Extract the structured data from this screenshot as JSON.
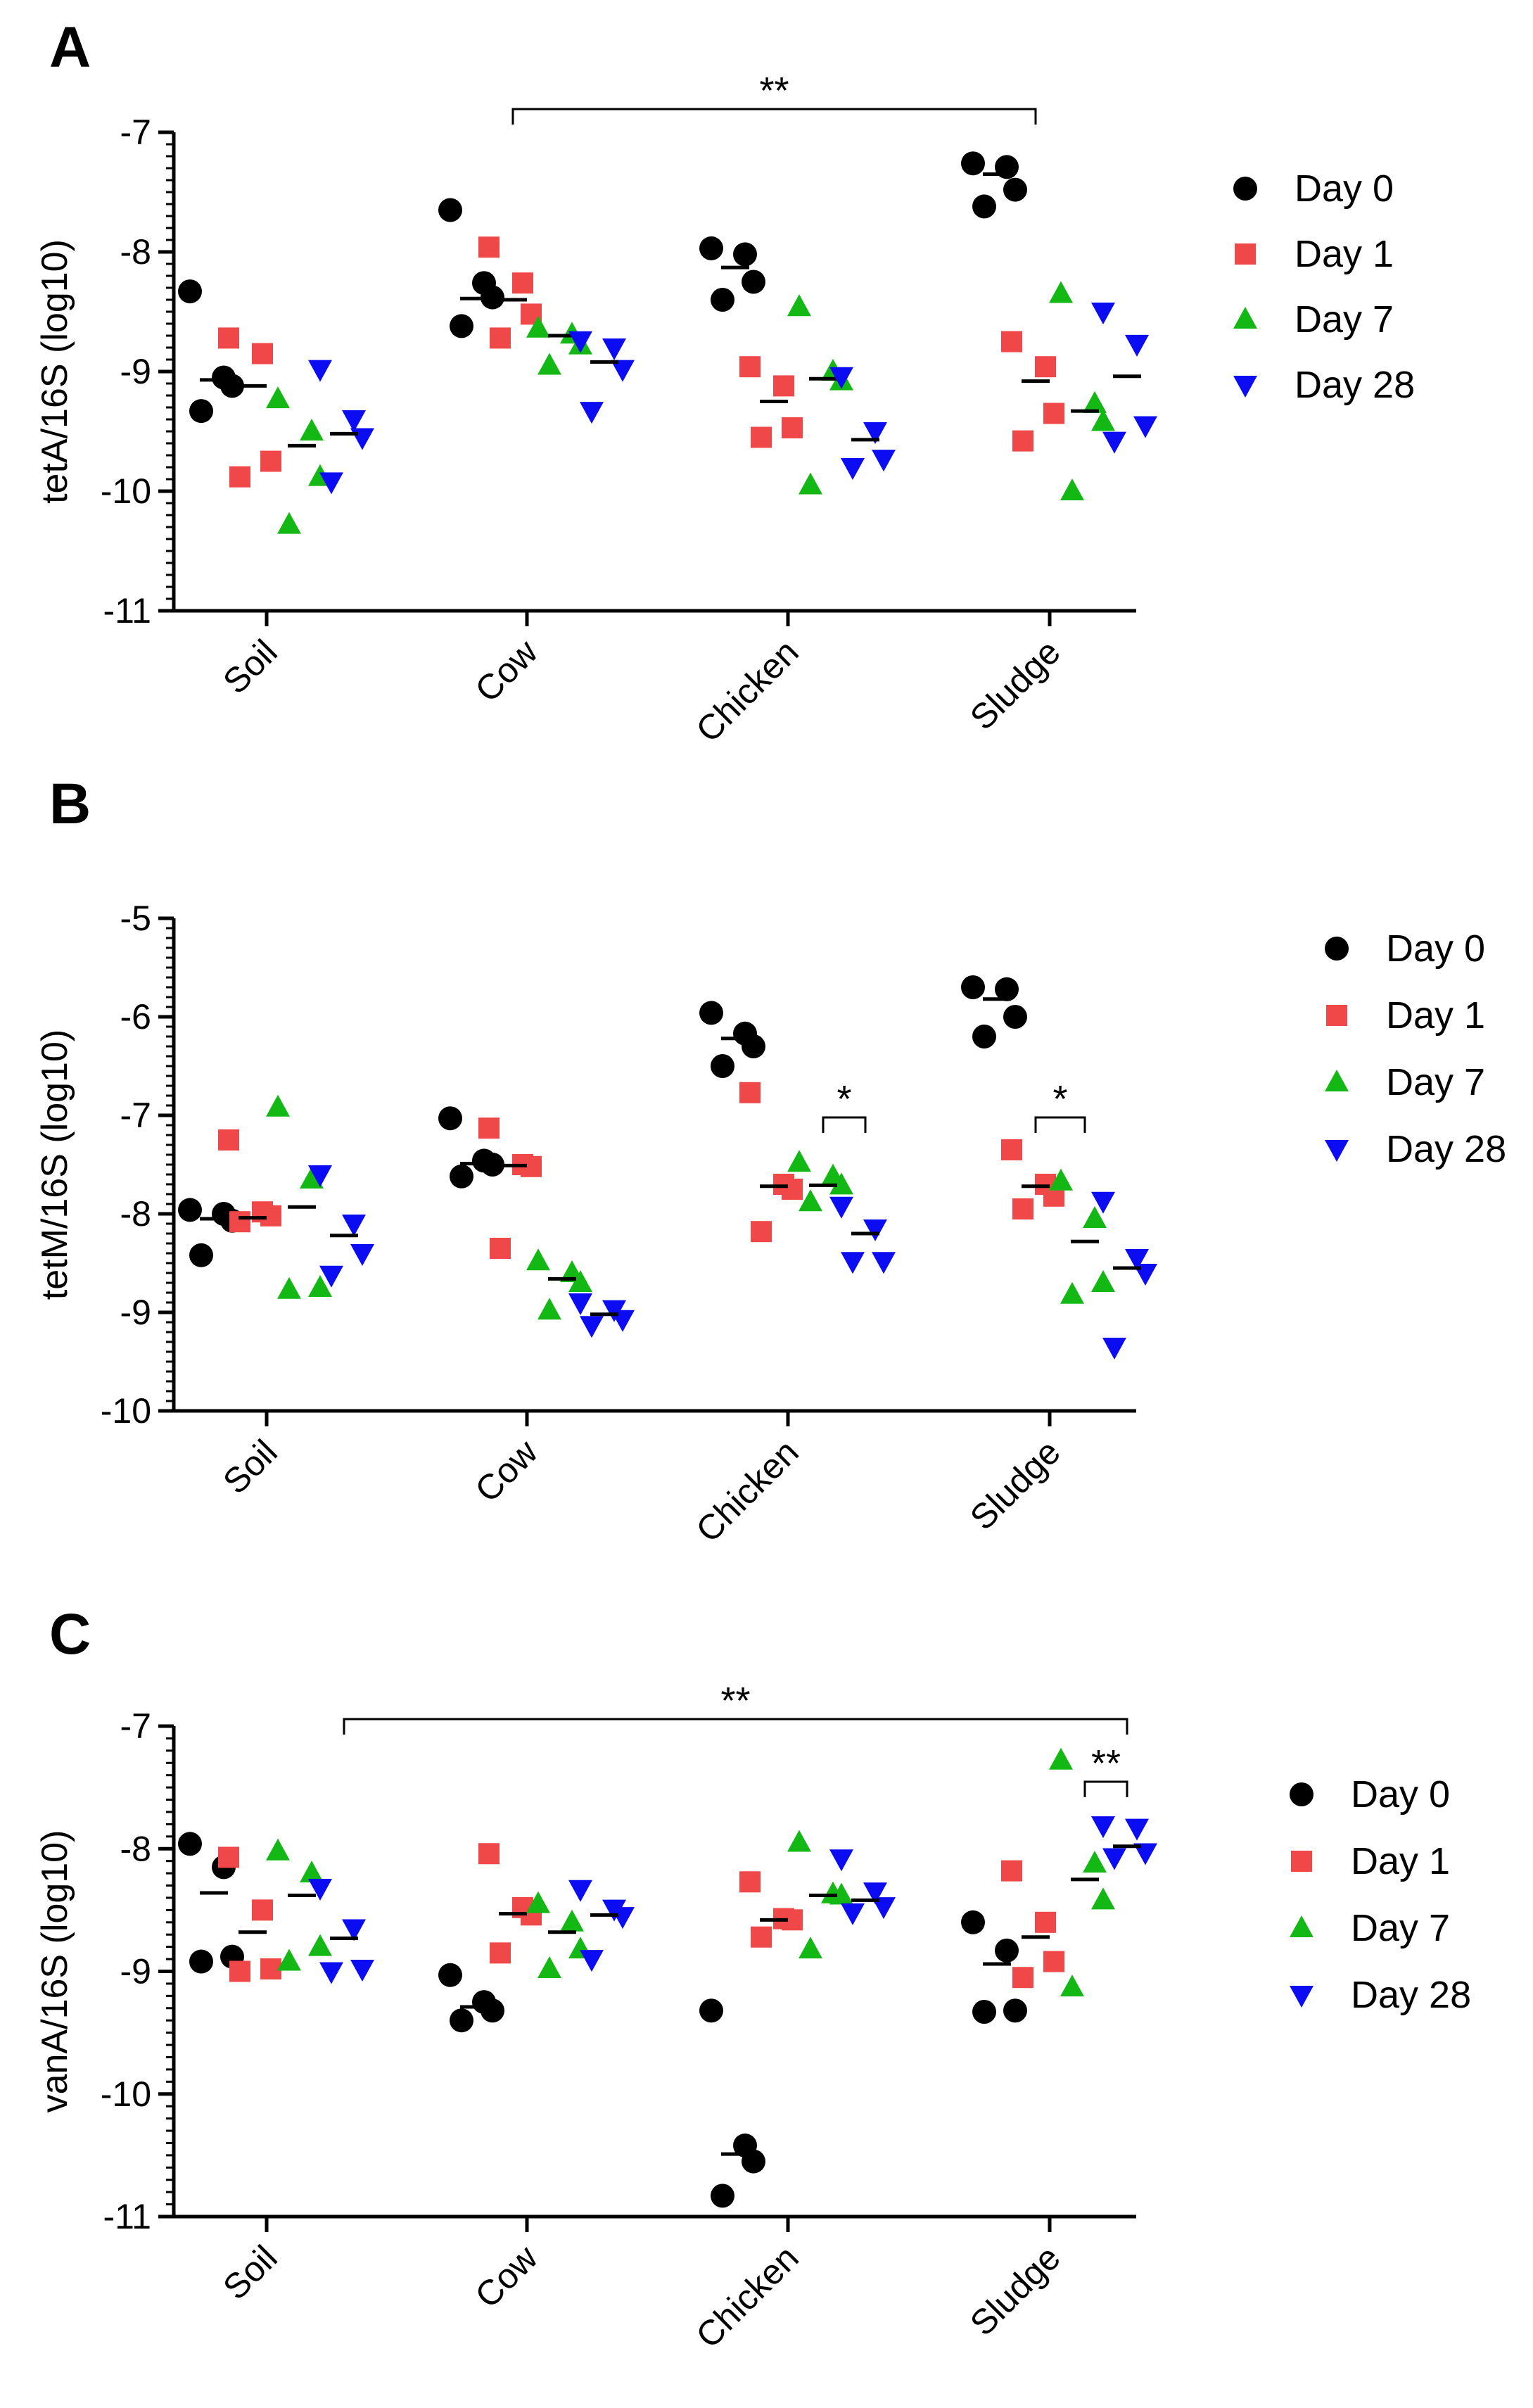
{
  "figure": {
    "series_styles": [
      {
        "name": "Day 0",
        "color": "#000000",
        "marker": "circle"
      },
      {
        "name": "Day 1",
        "color": "#f04848",
        "marker": "square"
      },
      {
        "name": "Day 7",
        "color": "#14b814",
        "marker": "triangle-up"
      },
      {
        "name": "Day 28",
        "color": "#0c0cf2",
        "marker": "triangle-down"
      }
    ]
  },
  "chart_data": [
    {
      "type": "scatter",
      "panel_label": "A",
      "ylabel": "tetA/16S (log10)",
      "ylim": [
        -11,
        -7
      ],
      "yticks": [
        -7,
        -8,
        -9,
        -10,
        -11
      ],
      "categories": [
        "Soil",
        "Cow",
        "Chicken",
        "Sludge"
      ],
      "series": [
        {
          "name": "Day 0",
          "values": [
            [
              -8.33,
              -9.05,
              -9.12,
              -9.33
            ],
            [
              -7.65,
              -8.26,
              -8.38,
              -8.62
            ],
            [
              -7.97,
              -8.02,
              -8.25,
              -8.4
            ],
            [
              -7.26,
              -7.29,
              -7.48,
              -7.62
            ]
          ],
          "medians": [
            -9.07,
            -8.39,
            -8.13,
            -7.35
          ]
        },
        {
          "name": "Day 1",
          "values": [
            [
              -8.72,
              -8.85,
              -9.75,
              -9.88
            ],
            [
              -7.96,
              -8.26,
              -8.52,
              -8.72
            ],
            [
              -8.96,
              -9.12,
              -9.47,
              -9.55
            ],
            [
              -8.75,
              -8.96,
              -9.35,
              -9.58
            ]
          ],
          "medians": [
            -9.12,
            -8.4,
            -9.25,
            -9.08
          ]
        },
        {
          "name": "Day 7",
          "values": [
            [
              -9.23,
              -9.5,
              -9.88,
              -10.28
            ],
            [
              -8.64,
              -8.69,
              -8.78,
              -8.95
            ],
            [
              -8.46,
              -9.0,
              -9.08,
              -9.95
            ],
            [
              -8.35,
              -9.27,
              -9.42,
              -10.0
            ]
          ],
          "medians": [
            -9.62,
            -8.7,
            -9.06,
            -9.33
          ]
        },
        {
          "name": "Day 28",
          "values": [
            [
              -8.98,
              -9.4,
              -9.55,
              -9.92
            ],
            [
              -8.74,
              -8.8,
              -8.98,
              -9.33
            ],
            [
              -9.04,
              -9.5,
              -9.73,
              -9.8
            ],
            [
              -8.5,
              -8.77,
              -9.45,
              -9.58
            ]
          ],
          "medians": [
            -9.52,
            -8.92,
            -9.57,
            -9.04
          ]
        }
      ],
      "annotations": [
        {
          "text": "**",
          "from": "Cow Day 1",
          "to": "Sludge Day 1"
        }
      ]
    },
    {
      "type": "scatter",
      "panel_label": "B",
      "ylabel": "tetM/16S (log10)",
      "ylim": [
        -10,
        -5
      ],
      "yticks": [
        -5,
        -6,
        -7,
        -8,
        -9,
        -10
      ],
      "categories": [
        "Soil",
        "Cow",
        "Chicken",
        "Sludge"
      ],
      "series": [
        {
          "name": "Day 0",
          "values": [
            [
              -7.96,
              -8.0,
              -8.07,
              -8.42
            ],
            [
              -7.03,
              -7.46,
              -7.5,
              -7.62
            ],
            [
              -5.96,
              -6.17,
              -6.3,
              -6.5
            ],
            [
              -5.7,
              -5.72,
              -6.0,
              -6.2
            ]
          ],
          "medians": [
            -8.05,
            -7.49,
            -6.22,
            -5.82
          ]
        },
        {
          "name": "Day 1",
          "values": [
            [
              -7.25,
              -7.98,
              -8.02,
              -8.08
            ],
            [
              -7.13,
              -7.5,
              -7.52,
              -8.35
            ],
            [
              -6.77,
              -7.7,
              -7.75,
              -8.18
            ],
            [
              -7.35,
              -7.7,
              -7.82,
              -7.95
            ]
          ],
          "medians": [
            -8.04,
            -7.51,
            -7.72,
            -7.72
          ]
        },
        {
          "name": "Day 7",
          "values": [
            [
              -6.92,
              -7.65,
              -8.75,
              -8.77
            ],
            [
              -8.48,
              -8.6,
              -8.7,
              -8.98
            ],
            [
              -7.48,
              -7.62,
              -7.71,
              -7.88
            ],
            [
              -7.67,
              -8.05,
              -8.7,
              -8.82
            ]
          ],
          "medians": [
            -7.93,
            -8.66,
            -7.71,
            -8.28
          ]
        },
        {
          "name": "Day 28",
          "values": [
            [
              -7.6,
              -8.1,
              -8.4,
              -8.62
            ],
            [
              -8.9,
              -8.97,
              -9.07,
              -9.13
            ],
            [
              -7.92,
              -8.15,
              -8.48,
              -8.48
            ],
            [
              -7.87,
              -8.45,
              -8.6,
              -9.35
            ]
          ],
          "medians": [
            -8.22,
            -9.02,
            -8.2,
            -8.55
          ]
        }
      ],
      "annotations": [
        {
          "text": "*",
          "from": "Chicken Day 7",
          "to": "Chicken Day 28"
        },
        {
          "text": "*",
          "from": "Sludge Day 1",
          "to": "Sludge Day 7"
        }
      ]
    },
    {
      "type": "scatter",
      "panel_label": "C",
      "ylabel": "vanA/16S (log10)",
      "ylim": [
        -11,
        -7
      ],
      "yticks": [
        -7,
        -8,
        -9,
        -10,
        -11
      ],
      "categories": [
        "Soil",
        "Cow",
        "Chicken",
        "Sludge"
      ],
      "series": [
        {
          "name": "Day 0",
          "values": [
            [
              -7.96,
              -8.15,
              -8.88,
              -8.92
            ],
            [
              -9.03,
              -9.25,
              -9.32,
              -9.4
            ],
            [
              -9.32,
              -10.42,
              -10.55,
              -10.83
            ],
            [
              -8.6,
              -8.83,
              -9.32,
              -9.33
            ]
          ],
          "medians": [
            -8.36,
            -9.29,
            -10.49,
            -8.94
          ]
        },
        {
          "name": "Day 1",
          "values": [
            [
              -8.07,
              -8.5,
              -8.98,
              -9.0
            ],
            [
              -8.04,
              -8.48,
              -8.54,
              -8.85
            ],
            [
              -8.27,
              -8.57,
              -8.58,
              -8.72
            ],
            [
              -8.18,
              -8.6,
              -8.92,
              -9.05
            ]
          ],
          "medians": [
            -8.68,
            -8.53,
            -8.58,
            -8.72
          ]
        },
        {
          "name": "Day 7",
          "values": [
            [
              -8.02,
              -8.2,
              -8.8,
              -8.92
            ],
            [
              -8.45,
              -8.6,
              -8.82,
              -8.98
            ],
            [
              -7.95,
              -8.37,
              -8.38,
              -8.82
            ],
            [
              -7.28,
              -8.12,
              -8.42,
              -9.13
            ]
          ],
          "medians": [
            -8.38,
            -8.68,
            -8.38,
            -8.25
          ]
        },
        {
          "name": "Day 28",
          "values": [
            [
              -8.32,
              -8.65,
              -8.98,
              -9.0
            ],
            [
              -8.33,
              -8.49,
              -8.55,
              -8.9
            ],
            [
              -8.08,
              -8.35,
              -8.47,
              -8.52
            ],
            [
              -7.81,
              -7.83,
              -8.03,
              -8.07
            ]
          ],
          "medians": [
            -8.73,
            -8.54,
            -8.42,
            -7.98
          ]
        }
      ],
      "annotations": [
        {
          "text": "**",
          "from": "Soil Day 28",
          "to": "Sludge Day 28"
        },
        {
          "text": "**",
          "from": "Sludge Day 7",
          "to": "Sludge Day 28"
        }
      ]
    }
  ]
}
